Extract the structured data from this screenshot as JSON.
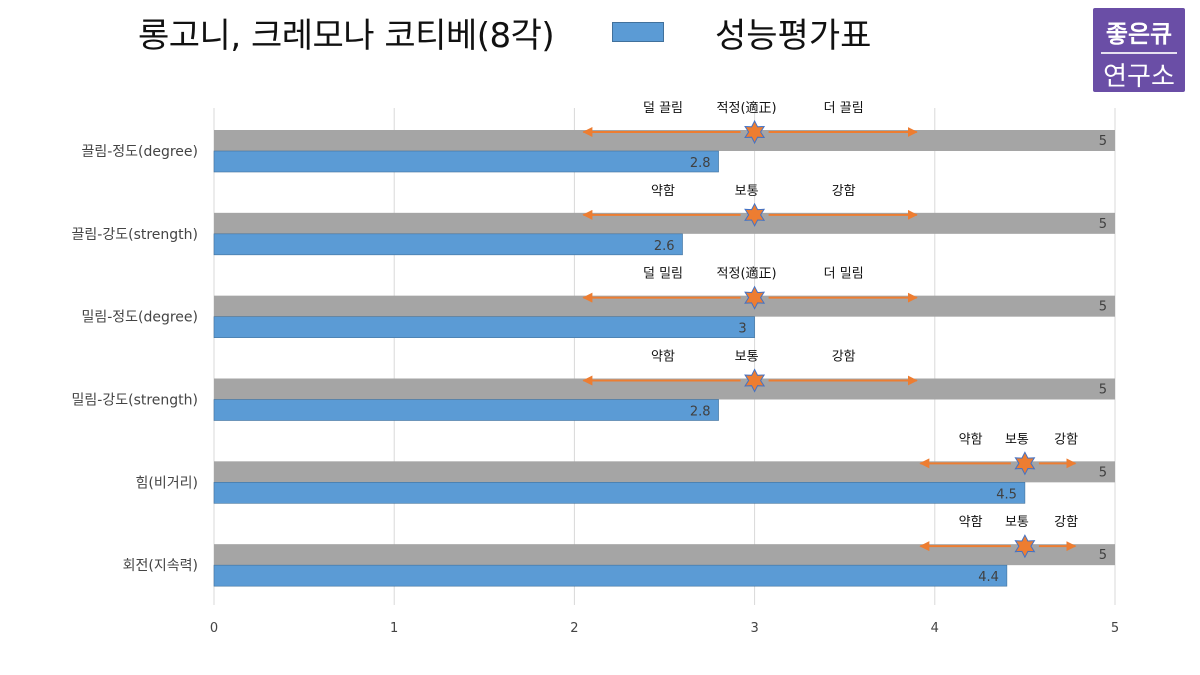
{
  "title": "롱고니, 크레모나 코티베(8각)",
  "legend": {
    "label": "성능평가표",
    "color": "#5b9bd5"
  },
  "logo": {
    "line1": "좋은큐",
    "line2": "연구소"
  },
  "colors": {
    "max_bar": "#a5a5a5",
    "value_bar": "#5b9bd5",
    "arrow": "#ed7d31",
    "star": "#ed7d31",
    "star_stroke": "#4472c4"
  },
  "chart_data": {
    "type": "bar",
    "orientation": "horizontal",
    "categories": [
      "끌림-정도(degree)",
      "끌림-강도(strength)",
      "밀림-정도(degree)",
      "밀림-강도(strength)",
      "힘(비거리)",
      "회전(지속력)"
    ],
    "series": [
      {
        "values": [
          5,
          5,
          5,
          5,
          5,
          5
        ]
      },
      {
        "name": "성능평가표",
        "values": [
          2.8,
          2.6,
          3,
          2.8,
          4.5,
          4.4
        ]
      }
    ],
    "data_labels": [
      [
        "5",
        "5",
        "5",
        "5",
        "5",
        "5"
      ],
      [
        "2.8",
        "2.6",
        "3",
        "2.8",
        "4.5",
        "4.4"
      ]
    ],
    "xlim": [
      0,
      5
    ],
    "xticks": [
      "0",
      "1",
      "2",
      "3",
      "4",
      "5"
    ],
    "grid": true,
    "legend": "top-center",
    "annotations": [
      {
        "low": "덜 끌림",
        "mid": "적정(適正)",
        "high": "더 끌림",
        "center": 3,
        "from": 2.05,
        "to": 3.9
      },
      {
        "low": "약함",
        "mid": "보통",
        "high": "강함",
        "center": 3,
        "from": 2.05,
        "to": 3.9
      },
      {
        "low": "덜 밀림",
        "mid": "적정(適正)",
        "high": "더 밀림",
        "center": 3,
        "from": 2.05,
        "to": 3.9
      },
      {
        "low": "약함",
        "mid": "보통",
        "high": "강함",
        "center": 3,
        "from": 2.05,
        "to": 3.9
      },
      {
        "low": "약함",
        "mid": "보통",
        "high": "강함",
        "center": 4.5,
        "from": 3.92,
        "to": 4.78
      },
      {
        "low": "약함",
        "mid": "보통",
        "high": "강함",
        "center": 4.5,
        "from": 3.92,
        "to": 4.78
      }
    ]
  }
}
